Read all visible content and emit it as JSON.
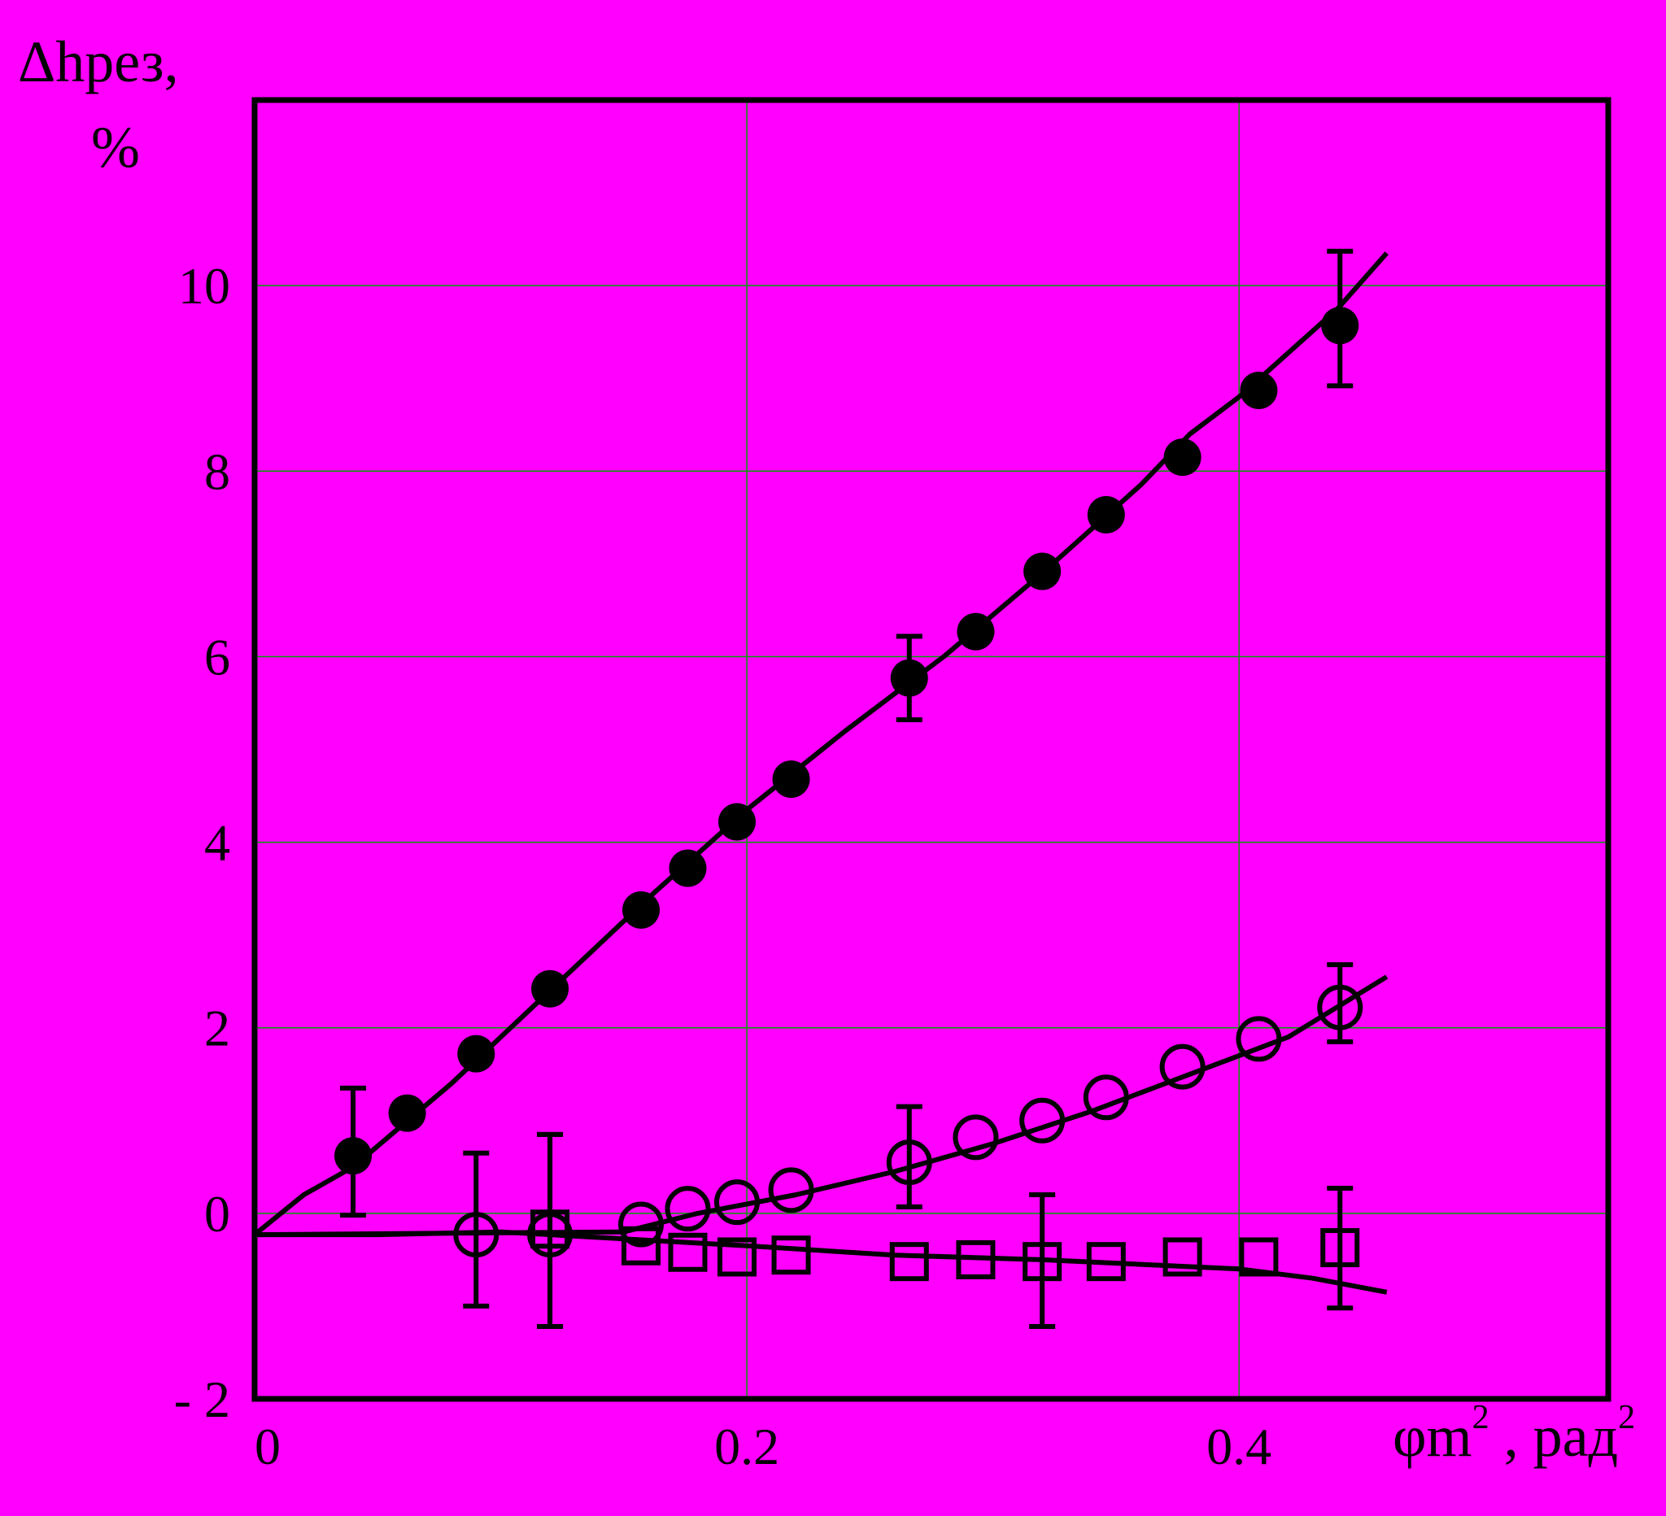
{
  "chart_data": {
    "type": "scatter",
    "ylabel_line1": "Δhрез,",
    "ylabel_line2": "%",
    "xlabel_main": "φm",
    "xlabel_sup": "2",
    "xlabel_unit": " , рад",
    "xlabel_unit_sup": "2",
    "xlim": [
      0,
      0.55
    ],
    "ylim": [
      -2,
      12
    ],
    "grid": true,
    "x_ticks": [
      {
        "value": 0,
        "label": "0"
      },
      {
        "value": 0.2,
        "label": "0.2"
      },
      {
        "value": 0.4,
        "label": "0.4"
      }
    ],
    "y_ticks": [
      {
        "value": -2,
        "label": "- 2"
      },
      {
        "value": 0,
        "label": "0"
      },
      {
        "value": 2,
        "label": "2"
      },
      {
        "value": 4,
        "label": "4"
      },
      {
        "value": 6,
        "label": "6"
      },
      {
        "value": 8,
        "label": "8"
      },
      {
        "value": 10,
        "label": "10"
      }
    ],
    "colors": {
      "background": "#ff00ff",
      "grid": "#00a000",
      "ink": "#000000"
    },
    "series": [
      {
        "marker": "filled-circle",
        "points": [
          [
            0.04,
            0.62
          ],
          [
            0.062,
            1.08
          ],
          [
            0.09,
            1.72
          ],
          [
            0.12,
            2.42
          ],
          [
            0.157,
            3.27
          ],
          [
            0.176,
            3.72
          ],
          [
            0.196,
            4.22
          ],
          [
            0.218,
            4.68
          ],
          [
            0.266,
            5.77
          ],
          [
            0.293,
            6.27
          ],
          [
            0.32,
            6.92
          ],
          [
            0.346,
            7.53
          ],
          [
            0.377,
            8.15
          ],
          [
            0.408,
            8.87
          ],
          [
            0.441,
            9.57
          ]
        ],
        "error_bars": [
          {
            "x": 0.04,
            "low": -0.02,
            "high": 1.35
          },
          {
            "x": 0.266,
            "low": 5.32,
            "high": 6.22
          },
          {
            "x": 0.441,
            "low": 8.92,
            "high": 10.37
          }
        ],
        "fit_line": [
          [
            0,
            -0.23
          ],
          [
            0.02,
            0.2
          ],
          [
            0.04,
            0.5
          ],
          [
            0.08,
            1.4
          ],
          [
            0.12,
            2.4
          ],
          [
            0.16,
            3.4
          ],
          [
            0.2,
            4.35
          ],
          [
            0.24,
            5.2
          ],
          [
            0.28,
            6.0
          ],
          [
            0.32,
            6.9
          ],
          [
            0.36,
            7.85
          ],
          [
            0.38,
            8.4
          ],
          [
            0.4,
            8.8
          ],
          [
            0.44,
            9.75
          ],
          [
            0.46,
            10.35
          ]
        ]
      },
      {
        "marker": "open-circle",
        "points": [
          [
            0.09,
            -0.23
          ],
          [
            0.12,
            -0.23
          ],
          [
            0.157,
            -0.12
          ],
          [
            0.176,
            0.05
          ],
          [
            0.196,
            0.12
          ],
          [
            0.218,
            0.25
          ],
          [
            0.266,
            0.55
          ],
          [
            0.293,
            0.82
          ],
          [
            0.32,
            1.0
          ],
          [
            0.346,
            1.25
          ],
          [
            0.377,
            1.58
          ],
          [
            0.408,
            1.88
          ],
          [
            0.441,
            2.22
          ]
        ],
        "error_bars": [
          {
            "x": 0.09,
            "low": -1.0,
            "high": 0.65
          },
          {
            "x": 0.12,
            "low": -1.22,
            "high": 0.85
          },
          {
            "x": 0.266,
            "low": 0.07,
            "high": 1.15
          },
          {
            "x": 0.441,
            "low": 1.85,
            "high": 2.68
          }
        ],
        "fit_line": [
          [
            0,
            -0.23
          ],
          [
            0.15,
            -0.2
          ],
          [
            0.18,
            0.0
          ],
          [
            0.22,
            0.2
          ],
          [
            0.26,
            0.45
          ],
          [
            0.3,
            0.75
          ],
          [
            0.34,
            1.1
          ],
          [
            0.38,
            1.5
          ],
          [
            0.42,
            1.9
          ],
          [
            0.46,
            2.55
          ]
        ]
      },
      {
        "marker": "open-square",
        "points": [
          [
            0.12,
            -0.17
          ],
          [
            0.157,
            -0.35
          ],
          [
            0.176,
            -0.42
          ],
          [
            0.196,
            -0.47
          ],
          [
            0.218,
            -0.45
          ],
          [
            0.266,
            -0.52
          ],
          [
            0.293,
            -0.5
          ],
          [
            0.32,
            -0.52
          ],
          [
            0.346,
            -0.52
          ],
          [
            0.377,
            -0.47
          ],
          [
            0.408,
            -0.47
          ],
          [
            0.441,
            -0.37
          ]
        ],
        "error_bars": [
          {
            "x": 0.12,
            "low": -1.22,
            "high": 0.85
          },
          {
            "x": 0.32,
            "low": -1.22,
            "high": 0.2
          },
          {
            "x": 0.441,
            "low": -1.02,
            "high": 0.27
          }
        ],
        "fit_line": [
          [
            0,
            -0.23
          ],
          [
            0.05,
            -0.23
          ],
          [
            0.1,
            -0.2
          ],
          [
            0.2,
            -0.35
          ],
          [
            0.26,
            -0.45
          ],
          [
            0.32,
            -0.5
          ],
          [
            0.36,
            -0.55
          ],
          [
            0.4,
            -0.6
          ],
          [
            0.43,
            -0.7
          ],
          [
            0.46,
            -0.85
          ]
        ]
      }
    ]
  }
}
